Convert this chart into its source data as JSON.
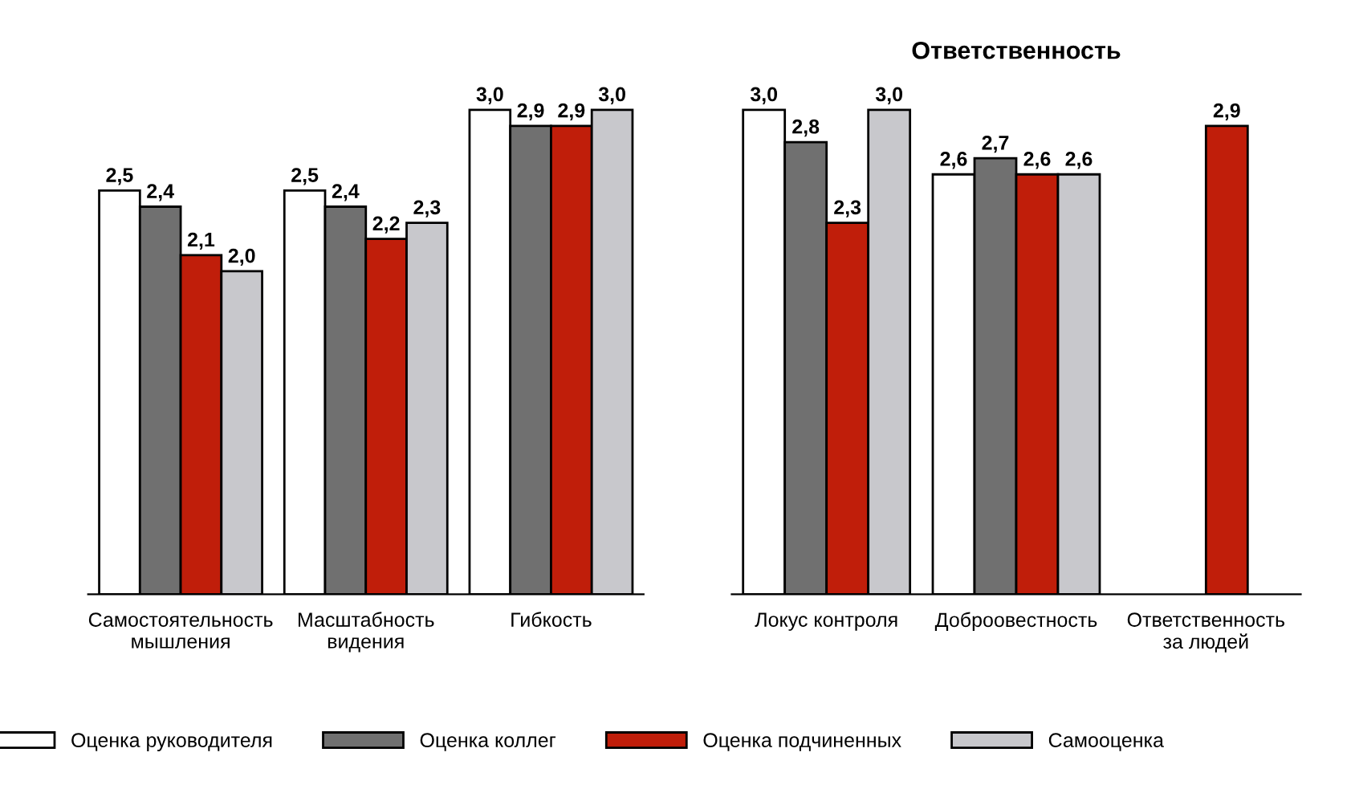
{
  "chart_data": [
    {
      "type": "bar",
      "categories": [
        "Самостоятельность\nмышления",
        "Масштабность\nвидения",
        "Гибкость"
      ],
      "legend": "bottom",
      "tick_labels": "x",
      "series": [
        {
          "name": "Оценка руководителя",
          "color": "#ffffff",
          "values": [
            2.5,
            2.5,
            3.0
          ],
          "value_labels": [
            "2,5",
            "2,5",
            "3,0"
          ]
        },
        {
          "name": "Оценка коллег",
          "color": "#707070",
          "values": [
            2.4,
            2.4,
            2.9
          ],
          "value_labels": [
            "2,4",
            "2,4",
            "2,9"
          ]
        },
        {
          "name": "Оценка подчиненных",
          "color": "#c01e0a",
          "values": [
            2.1,
            2.2,
            2.9
          ],
          "value_labels": [
            "2,1",
            "2,2",
            "2,9"
          ]
        },
        {
          "name": "Самооценка",
          "color": "#c8c8cc",
          "values": [
            2.0,
            2.3,
            3.0
          ],
          "value_labels": [
            "2,0",
            "2,3",
            "3,0"
          ]
        }
      ]
    },
    {
      "type": "bar",
      "title": "Ответственность",
      "categories": [
        "Локус контроля",
        "Доброовестность",
        "Ответственность\nза людей"
      ],
      "tick_labels": "x",
      "series": [
        {
          "color": "#ffffff",
          "values": [
            3.0,
            2.6,
            null
          ],
          "value_labels": [
            "3,0",
            "2,6",
            null
          ]
        },
        {
          "color": "#707070",
          "values": [
            2.8,
            2.7,
            null
          ],
          "value_labels": [
            "2,8",
            "2,7",
            null
          ]
        },
        {
          "color": "#c01e0a",
          "values": [
            2.3,
            2.6,
            2.9
          ],
          "value_labels": [
            "2,3",
            "2,6",
            "2,9"
          ]
        },
        {
          "color": "#c8c8cc",
          "values": [
            3.0,
            2.6,
            null
          ],
          "value_labels": [
            "3,0",
            "2,6",
            null
          ]
        }
      ]
    }
  ]
}
